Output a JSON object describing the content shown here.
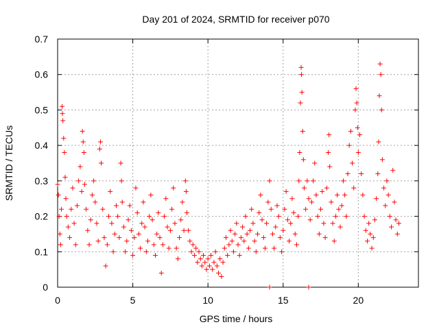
{
  "chart_data": {
    "type": "scatter",
    "title": "Day 201 of 2024, SRMTID for receiver p070",
    "xlabel": "GPS time / hours",
    "ylabel": "SRMTID / TECUs",
    "xlim": [
      0,
      24
    ],
    "ylim": [
      0,
      0.7
    ],
    "x_ticks": [
      0,
      5,
      10,
      15,
      20
    ],
    "x_tick_labels": [
      "0",
      "5",
      "10",
      "15",
      "20"
    ],
    "y_ticks": [
      0,
      0.1,
      0.2,
      0.3,
      0.4,
      0.5,
      0.6,
      0.7
    ],
    "y_tick_labels": [
      "0",
      "0.1",
      "0.2",
      "0.3",
      "0.4",
      "0.5",
      "0.6",
      "0.7"
    ],
    "grid": true,
    "marker": "+",
    "series_color": "#ff0000",
    "series": [
      {
        "name": "SRMTID",
        "points": [
          [
            0.0,
            0.29
          ],
          [
            0.05,
            0.26
          ],
          [
            0.1,
            0.2
          ],
          [
            0.15,
            0.15
          ],
          [
            0.2,
            0.12
          ],
          [
            0.25,
            0.22
          ],
          [
            0.3,
            0.51
          ],
          [
            0.32,
            0.49
          ],
          [
            0.35,
            0.47
          ],
          [
            0.4,
            0.42
          ],
          [
            0.45,
            0.38
          ],
          [
            0.5,
            0.31
          ],
          [
            0.55,
            0.25
          ],
          [
            0.6,
            0.2
          ],
          [
            0.7,
            0.17
          ],
          [
            0.8,
            0.14
          ],
          [
            0.9,
            0.22
          ],
          [
            1.0,
            0.28
          ],
          [
            1.1,
            0.18
          ],
          [
            1.2,
            0.12
          ],
          [
            1.3,
            0.23
          ],
          [
            1.4,
            0.3
          ],
          [
            1.5,
            0.34
          ],
          [
            1.6,
            0.27
          ],
          [
            1.65,
            0.44
          ],
          [
            1.7,
            0.41
          ],
          [
            1.75,
            0.38
          ],
          [
            1.8,
            0.29
          ],
          [
            1.9,
            0.22
          ],
          [
            2.0,
            0.16
          ],
          [
            2.1,
            0.12
          ],
          [
            2.2,
            0.19
          ],
          [
            2.3,
            0.26
          ],
          [
            2.4,
            0.3
          ],
          [
            2.5,
            0.24
          ],
          [
            2.6,
            0.18
          ],
          [
            2.7,
            0.13
          ],
          [
            2.8,
            0.39
          ],
          [
            2.85,
            0.41
          ],
          [
            2.9,
            0.35
          ],
          [
            3.0,
            0.22
          ],
          [
            3.1,
            0.14
          ],
          [
            3.2,
            0.06
          ],
          [
            3.3,
            0.12
          ],
          [
            3.4,
            0.2
          ],
          [
            3.5,
            0.27
          ],
          [
            3.6,
            0.18
          ],
          [
            3.7,
            0.1
          ],
          [
            3.8,
            0.15
          ],
          [
            3.9,
            0.23
          ],
          [
            4.0,
            0.2
          ],
          [
            4.1,
            0.14
          ],
          [
            4.2,
            0.35
          ],
          [
            4.25,
            0.3
          ],
          [
            4.3,
            0.24
          ],
          [
            4.4,
            0.17
          ],
          [
            4.5,
            0.1
          ],
          [
            4.6,
            0.13
          ],
          [
            4.7,
            0.19
          ],
          [
            4.8,
            0.23
          ],
          [
            4.9,
            0.16
          ],
          [
            5.0,
            0.09
          ],
          [
            5.1,
            0.14
          ],
          [
            5.2,
            0.28
          ],
          [
            5.3,
            0.21
          ],
          [
            5.4,
            0.15
          ],
          [
            5.5,
            0.11
          ],
          [
            5.6,
            0.18
          ],
          [
            5.7,
            0.24
          ],
          [
            5.8,
            0.17
          ],
          [
            5.9,
            0.1
          ],
          [
            6.0,
            0.13
          ],
          [
            6.1,
            0.2
          ],
          [
            6.2,
            0.26
          ],
          [
            6.3,
            0.19
          ],
          [
            6.4,
            0.12
          ],
          [
            6.5,
            0.09
          ],
          [
            6.6,
            0.15
          ],
          [
            6.7,
            0.21
          ],
          [
            6.8,
            0.14
          ],
          [
            6.9,
            0.04
          ],
          [
            7.0,
            0.12
          ],
          [
            7.1,
            0.2
          ],
          [
            7.2,
            0.25
          ],
          [
            7.3,
            0.17
          ],
          [
            7.4,
            0.11
          ],
          [
            7.5,
            0.16
          ],
          [
            7.6,
            0.22
          ],
          [
            7.7,
            0.28
          ],
          [
            7.8,
            0.18
          ],
          [
            7.9,
            0.11
          ],
          [
            8.0,
            0.08
          ],
          [
            8.1,
            0.14
          ],
          [
            8.2,
            0.19
          ],
          [
            8.3,
            0.24
          ],
          [
            8.4,
            0.16
          ],
          [
            8.5,
            0.3
          ],
          [
            8.55,
            0.27
          ],
          [
            8.6,
            0.21
          ],
          [
            8.7,
            0.16
          ],
          [
            8.8,
            0.13
          ],
          [
            8.9,
            0.1
          ],
          [
            9.0,
            0.12
          ],
          [
            9.1,
            0.09
          ],
          [
            9.2,
            0.11
          ],
          [
            9.3,
            0.07
          ],
          [
            9.4,
            0.1
          ],
          [
            9.5,
            0.08
          ],
          [
            9.6,
            0.06
          ],
          [
            9.7,
            0.09
          ],
          [
            9.8,
            0.07
          ],
          [
            9.9,
            0.05
          ],
          [
            10.0,
            0.08
          ],
          [
            10.1,
            0.06
          ],
          [
            10.2,
            0.09
          ],
          [
            10.3,
            0.05
          ],
          [
            10.4,
            0.07
          ],
          [
            10.5,
            0.1
          ],
          [
            10.6,
            0.06
          ],
          [
            10.7,
            0.04
          ],
          [
            10.8,
            0.08
          ],
          [
            10.9,
            0.03
          ],
          [
            11.0,
            0.07
          ],
          [
            11.1,
            0.11
          ],
          [
            11.2,
            0.14
          ],
          [
            11.3,
            0.09
          ],
          [
            11.4,
            0.12
          ],
          [
            11.5,
            0.16
          ],
          [
            11.6,
            0.13
          ],
          [
            11.7,
            0.1
          ],
          [
            11.8,
            0.15
          ],
          [
            11.9,
            0.18
          ],
          [
            12.0,
            0.12
          ],
          [
            12.1,
            0.09
          ],
          [
            12.2,
            0.14
          ],
          [
            12.3,
            0.17
          ],
          [
            12.4,
            0.13
          ],
          [
            12.5,
            0.2
          ],
          [
            12.6,
            0.15
          ],
          [
            12.7,
            0.11
          ],
          [
            12.8,
            0.16
          ],
          [
            12.9,
            0.22
          ],
          [
            13.0,
            0.18
          ],
          [
            13.1,
            0.13
          ],
          [
            13.2,
            0.1
          ],
          [
            13.3,
            0.15
          ],
          [
            13.4,
            0.21
          ],
          [
            13.5,
            0.26
          ],
          [
            13.6,
            0.19
          ],
          [
            13.7,
            0.14
          ],
          [
            13.8,
            0.11
          ],
          [
            13.9,
            0.18
          ],
          [
            14.0,
            0.24
          ],
          [
            14.1,
            0.3
          ],
          [
            14.2,
            0.22
          ],
          [
            14.3,
            0.15
          ],
          [
            14.4,
            0.11
          ],
          [
            14.5,
            0.17
          ],
          [
            14.6,
            0.23
          ],
          [
            14.7,
            0.2
          ],
          [
            14.8,
            0.14
          ],
          [
            14.9,
            0.1
          ],
          [
            15.0,
            0.16
          ],
          [
            15.1,
            0.22
          ],
          [
            15.2,
            0.27
          ],
          [
            15.3,
            0.19
          ],
          [
            15.4,
            0.13
          ],
          [
            15.5,
            0.18
          ],
          [
            15.6,
            0.25
          ],
          [
            15.7,
            0.21
          ],
          [
            15.8,
            0.15
          ],
          [
            15.9,
            0.12
          ],
          [
            16.0,
            0.2
          ],
          [
            16.05,
            0.3
          ],
          [
            16.1,
            0.38
          ],
          [
            16.15,
            0.52
          ],
          [
            16.2,
            0.62
          ],
          [
            16.22,
            0.6
          ],
          [
            16.25,
            0.55
          ],
          [
            16.3,
            0.44
          ],
          [
            16.35,
            0.36
          ],
          [
            16.4,
            0.28
          ],
          [
            16.5,
            0.22
          ],
          [
            16.6,
            0.3
          ],
          [
            16.7,
            0.25
          ],
          [
            16.8,
            0.19
          ],
          [
            16.9,
            0.24
          ],
          [
            17.0,
            0.3
          ],
          [
            17.1,
            0.35
          ],
          [
            17.2,
            0.26
          ],
          [
            17.3,
            0.2
          ],
          [
            17.4,
            0.15
          ],
          [
            17.5,
            0.22
          ],
          [
            17.6,
            0.27
          ],
          [
            17.7,
            0.18
          ],
          [
            17.8,
            0.14
          ],
          [
            17.9,
            0.28
          ],
          [
            18.0,
            0.38
          ],
          [
            18.05,
            0.43
          ],
          [
            18.1,
            0.34
          ],
          [
            18.2,
            0.24
          ],
          [
            18.3,
            0.18
          ],
          [
            18.4,
            0.13
          ],
          [
            18.5,
            0.2
          ],
          [
            18.6,
            0.26
          ],
          [
            18.7,
            0.22
          ],
          [
            18.8,
            0.17
          ],
          [
            18.9,
            0.23
          ],
          [
            19.0,
            0.3
          ],
          [
            19.1,
            0.26
          ],
          [
            19.2,
            0.2
          ],
          [
            19.3,
            0.32
          ],
          [
            19.4,
            0.4
          ],
          [
            19.5,
            0.44
          ],
          [
            19.6,
            0.35
          ],
          [
            19.7,
            0.28
          ],
          [
            19.8,
            0.5
          ],
          [
            19.85,
            0.56
          ],
          [
            19.9,
            0.52
          ],
          [
            19.95,
            0.45
          ],
          [
            20.0,
            0.38
          ],
          [
            20.1,
            0.43
          ],
          [
            20.2,
            0.32
          ],
          [
            20.3,
            0.26
          ],
          [
            20.4,
            0.2
          ],
          [
            20.5,
            0.16
          ],
          [
            20.6,
            0.13
          ],
          [
            20.7,
            0.18
          ],
          [
            20.8,
            0.15
          ],
          [
            20.9,
            0.11
          ],
          [
            21.0,
            0.14
          ],
          [
            21.1,
            0.19
          ],
          [
            21.2,
            0.25
          ],
          [
            21.3,
            0.32
          ],
          [
            21.35,
            0.41
          ],
          [
            21.4,
            0.54
          ],
          [
            21.45,
            0.63
          ],
          [
            21.5,
            0.6
          ],
          [
            21.55,
            0.5
          ],
          [
            21.6,
            0.36
          ],
          [
            21.7,
            0.28
          ],
          [
            21.8,
            0.23
          ],
          [
            21.9,
            0.3
          ],
          [
            22.0,
            0.26
          ],
          [
            22.1,
            0.2
          ],
          [
            22.2,
            0.17
          ],
          [
            22.3,
            0.33
          ],
          [
            22.4,
            0.24
          ],
          [
            22.5,
            0.19
          ],
          [
            22.6,
            0.15
          ],
          [
            22.7,
            0.18
          ],
          [
            14.1,
            0.0
          ],
          [
            16.7,
            0.0
          ]
        ]
      }
    ]
  }
}
